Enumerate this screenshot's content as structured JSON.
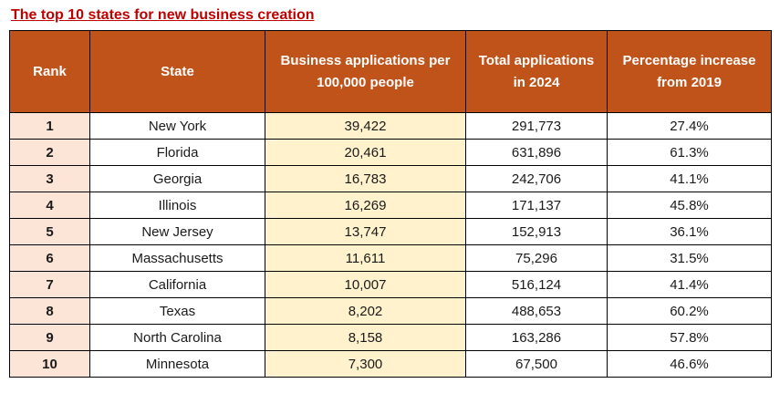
{
  "colors": {
    "header_bg": "#c0531a",
    "rank_col_bg": "#fce4d6",
    "apps_col_bg": "#fff2cc",
    "title_color": "#c00000",
    "border": "#000000"
  },
  "chart_data": {
    "type": "table",
    "title": "The top 10 states for new business creation",
    "columns": [
      "Rank",
      "State",
      "Business applications per 100,000 people",
      "Total applications in 2024",
      "Percentage increase from 2019"
    ],
    "rows": [
      [
        "1",
        "New York",
        "39,422",
        "291,773",
        "27.4%"
      ],
      [
        "2",
        "Florida",
        "20,461",
        "631,896",
        "61.3%"
      ],
      [
        "3",
        "Georgia",
        "16,783",
        "242,706",
        "41.1%"
      ],
      [
        "4",
        "Illinois",
        "16,269",
        "171,137",
        "45.8%"
      ],
      [
        "5",
        "New Jersey",
        "13,747",
        "152,913",
        "36.1%"
      ],
      [
        "6",
        "Massachusetts",
        "11,611",
        "75,296",
        "31.5%"
      ],
      [
        "7",
        "California",
        "10,007",
        "516,124",
        "41.4%"
      ],
      [
        "8",
        "Texas",
        "8,202",
        "488,653",
        "60.2%"
      ],
      [
        "9",
        "North Carolina",
        "8,158",
        "163,286",
        "57.8%"
      ],
      [
        "10",
        "Minnesota",
        "7,300",
        "67,500",
        "46.6%"
      ]
    ]
  }
}
